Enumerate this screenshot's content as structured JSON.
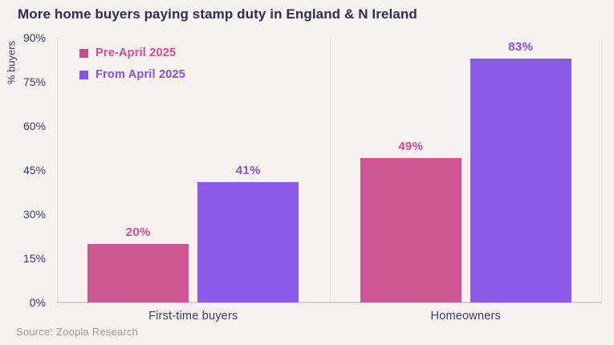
{
  "title": "More home buyers paying stamp duty in England & N Ireland",
  "source": "Source: Zoopla Research",
  "colors": {
    "background": "#f5f2ef",
    "title_text": "#322b56",
    "axis_text": "#3f3967",
    "source_text": "#a29c97",
    "pre_april_bar": "#ce5794",
    "pre_april_text": "#dc4a8d",
    "from_april_bar": "#8a5ae9",
    "from_april_text": "#8b4deb"
  },
  "chart_data": {
    "type": "bar",
    "title": "More home buyers paying stamp duty in England & N Ireland",
    "categories": [
      "First-time buyers",
      "Homeowners"
    ],
    "series": [
      {
        "name": "Pre-April 2025",
        "values": [
          20,
          49
        ],
        "color": "#ce5794",
        "label_color": "#dc4a8d",
        "marker_color": "#c64b8c"
      },
      {
        "name": "From April 2025",
        "values": [
          41,
          83
        ],
        "color": "#8a5ae9",
        "label_color": "#8b4deb",
        "marker_color": "#8950f0"
      }
    ],
    "xlabel": "",
    "ylabel": "% buyers",
    "ylim": [
      0,
      90
    ],
    "yticks": [
      "0%",
      "15%",
      "30%",
      "45%",
      "60%",
      "75%",
      "90%"
    ],
    "value_suffix": "%",
    "grid": "vertical-band-separators-only",
    "legend_position": "top-left-inside"
  }
}
